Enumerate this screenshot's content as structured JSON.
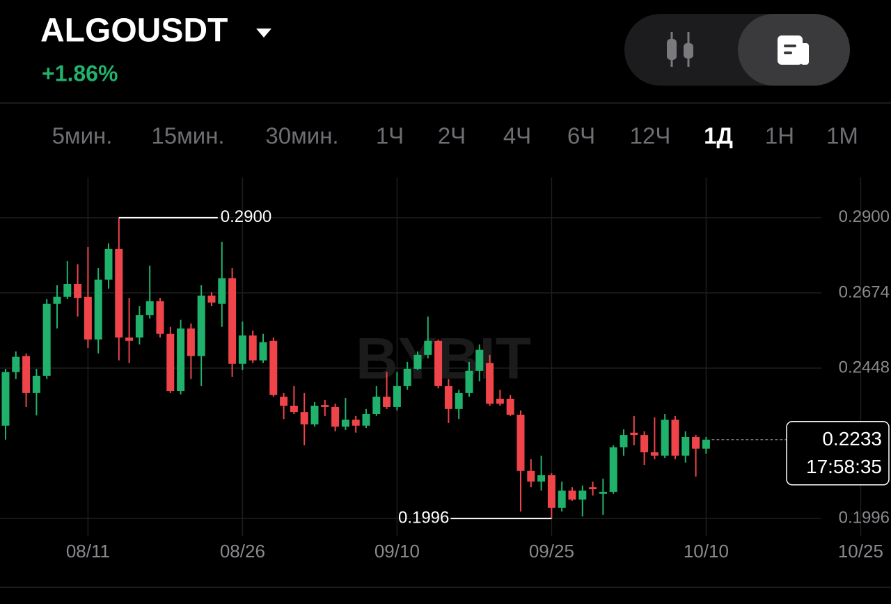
{
  "header": {
    "symbol": "ALGOUSDT",
    "change": "+1.86%"
  },
  "timeframes": [
    "5мин.",
    "15мин.",
    "30мин.",
    "1Ч",
    "2Ч",
    "4Ч",
    "6Ч",
    "12Ч",
    "1Д",
    "1Н",
    "1М"
  ],
  "active_timeframe": "1Д",
  "chart_data": {
    "type": "candlestick",
    "watermark": "BYBIT",
    "up_color": "#20b26c",
    "down_color": "#ef454a",
    "x": [
      0,
      1,
      2,
      3,
      4,
      5,
      6,
      7,
      8,
      9,
      10,
      11,
      12,
      13,
      14,
      15,
      16,
      17,
      18,
      19,
      20,
      21,
      22,
      23,
      24,
      25,
      26,
      27,
      28,
      29,
      30,
      31,
      32,
      33,
      34,
      35,
      36,
      37,
      38,
      39,
      40,
      41,
      42,
      43,
      44,
      45,
      46,
      47,
      48,
      49,
      50,
      51,
      52,
      53,
      54,
      55,
      56,
      57,
      58,
      59,
      60,
      61,
      62,
      63,
      64,
      65,
      66,
      67,
      68
    ],
    "open": [
      0.2275,
      0.2436,
      0.2484,
      0.2373,
      0.2425,
      0.2641,
      0.2662,
      0.2701,
      0.2662,
      0.2534,
      0.2714,
      0.2806,
      0.254,
      0.254,
      0.2607,
      0.2649,
      0.2551,
      0.2379,
      0.2567,
      0.2484,
      0.2666,
      0.2641,
      0.2718,
      0.2461,
      0.2546,
      0.2471,
      0.253,
      0.2362,
      0.2335,
      0.2316,
      0.2279,
      0.2337,
      0.2331,
      0.2272,
      0.2293,
      0.2275,
      0.231,
      0.2362,
      0.2331,
      0.2394,
      0.2446,
      0.2488,
      0.253,
      0.2394,
      0.2325,
      0.2373,
      0.244,
      0.2463,
      0.2356,
      0.2356,
      0.2308,
      0.2139,
      0.2107,
      0.2126,
      0.2028,
      0.208,
      0.2053,
      0.209,
      0.207,
      0.2076,
      0.221,
      0.2254,
      0.2247,
      0.2195,
      0.2185,
      0.2293,
      0.2185,
      0.2241,
      0.2206
    ],
    "high": [
      0.2446,
      0.2498,
      0.2492,
      0.2446,
      0.2655,
      0.2697,
      0.277,
      0.276,
      0.2812,
      0.2749,
      0.2823,
      0.29,
      0.2659,
      0.2634,
      0.2756,
      0.2659,
      0.2572,
      0.2593,
      0.2582,
      0.2697,
      0.2676,
      0.2827,
      0.2749,
      0.2588,
      0.2561,
      0.2551,
      0.254,
      0.2373,
      0.2394,
      0.2373,
      0.2346,
      0.2352,
      0.2341,
      0.2358,
      0.2304,
      0.2325,
      0.2394,
      0.2436,
      0.2436,
      0.2467,
      0.2498,
      0.2603,
      0.2534,
      0.2415,
      0.2383,
      0.2467,
      0.2519,
      0.2488,
      0.2383,
      0.2367,
      0.2321,
      0.2174,
      0.2185,
      0.2132,
      0.2107,
      0.209,
      0.2095,
      0.2107,
      0.2116,
      0.2216,
      0.2264,
      0.2304,
      0.2258,
      0.23,
      0.231,
      0.2304,
      0.2258,
      0.2247,
      0.2241
    ],
    "low": [
      0.2233,
      0.2415,
      0.2331,
      0.2306,
      0.2415,
      0.2567,
      0.2655,
      0.2603,
      0.2509,
      0.2492,
      0.2687,
      0.2471,
      0.2463,
      0.2519,
      0.2597,
      0.254,
      0.2373,
      0.2369,
      0.2415,
      0.2394,
      0.2634,
      0.2572,
      0.2421,
      0.2442,
      0.2463,
      0.2463,
      0.2362,
      0.2295,
      0.231,
      0.2216,
      0.2272,
      0.2304,
      0.2258,
      0.2262,
      0.2254,
      0.2268,
      0.2304,
      0.2325,
      0.2321,
      0.2383,
      0.2442,
      0.2477,
      0.2387,
      0.2283,
      0.2295,
      0.2362,
      0.2408,
      0.2335,
      0.2335,
      0.2304,
      0.2017,
      0.209,
      0.208,
      0.1996,
      0.2017,
      0.2049,
      0.2002,
      0.2065,
      0.2007,
      0.207,
      0.2185,
      0.2216,
      0.2157,
      0.2174,
      0.2178,
      0.2174,
      0.2164,
      0.2122,
      0.2191
    ],
    "close": [
      0.2436,
      0.2482,
      0.2373,
      0.2425,
      0.2641,
      0.2662,
      0.2701,
      0.2659,
      0.2534,
      0.2714,
      0.2806,
      0.254,
      0.253,
      0.2607,
      0.2649,
      0.2551,
      0.2379,
      0.2567,
      0.2484,
      0.2666,
      0.2645,
      0.2718,
      0.2461,
      0.2546,
      0.2471,
      0.2526,
      0.2367,
      0.2335,
      0.2316,
      0.2279,
      0.2335,
      0.2331,
      0.2272,
      0.2293,
      0.2275,
      0.231,
      0.2362,
      0.2331,
      0.2394,
      0.2446,
      0.2488,
      0.253,
      0.2394,
      0.2325,
      0.2373,
      0.244,
      0.2503,
      0.2341,
      0.2341,
      0.2308,
      0.2139,
      0.2107,
      0.2126,
      0.2028,
      0.208,
      0.2053,
      0.208,
      0.2084,
      0.2076,
      0.221,
      0.2247,
      0.2247,
      0.2195,
      0.2185,
      0.2293,
      0.2185,
      0.2241,
      0.2206,
      0.2233
    ],
    "xlim": [
      -0.54,
      83.92
    ],
    "xticks": [
      {
        "value": 8,
        "label": "08/11"
      },
      {
        "value": 23,
        "label": "08/26"
      },
      {
        "value": 38,
        "label": "09/10"
      },
      {
        "value": 53,
        "label": "09/25"
      },
      {
        "value": 68,
        "label": "10/10"
      },
      {
        "value": 83,
        "label": "10/25"
      }
    ],
    "ylim": [
      0.1944,
      0.3021
    ],
    "yticks": [
      {
        "value": 0.29,
        "label": "0.2900"
      },
      {
        "value": 0.2674,
        "label": "0.2674"
      },
      {
        "value": 0.2448,
        "label": "0.2448"
      },
      {
        "value": 0.1996,
        "label": "0.1996"
      }
    ],
    "grid": true,
    "max_label": "0.2900",
    "min_label": "0.1996",
    "last_price_label": "0.2233",
    "countdown": "17:58:35"
  }
}
